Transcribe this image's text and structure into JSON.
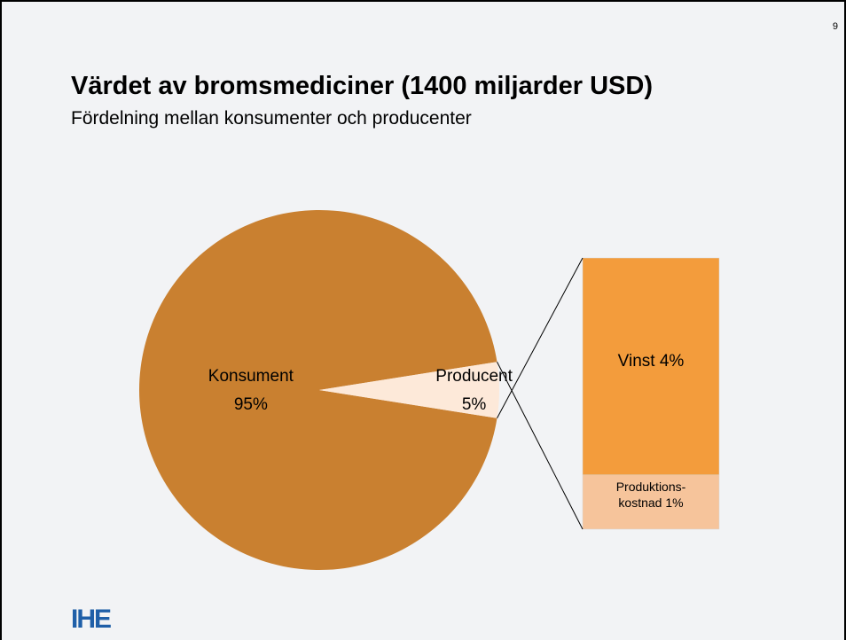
{
  "page_number": "9",
  "logo": "IHE",
  "chart_data": {
    "type": "pie",
    "title": "Värdet av bromsmediciner (1400 miljarder USD)",
    "subtitle": "Fördelning mellan konsumenter och producenter",
    "categories": [
      "Konsument",
      "Producent"
    ],
    "values": [
      95,
      5
    ],
    "value_labels": [
      "95%",
      "5%"
    ],
    "colors": [
      "#c98030",
      "#fde9d9"
    ],
    "breakdown": {
      "type": "stacked-bar",
      "categories": [
        "Vinst",
        "Produktions-kostnad"
      ],
      "values": [
        4,
        1
      ],
      "value_labels": [
        "4%",
        "1%"
      ],
      "colors": [
        "#f39c3c",
        "#f6c49b"
      ]
    }
  }
}
